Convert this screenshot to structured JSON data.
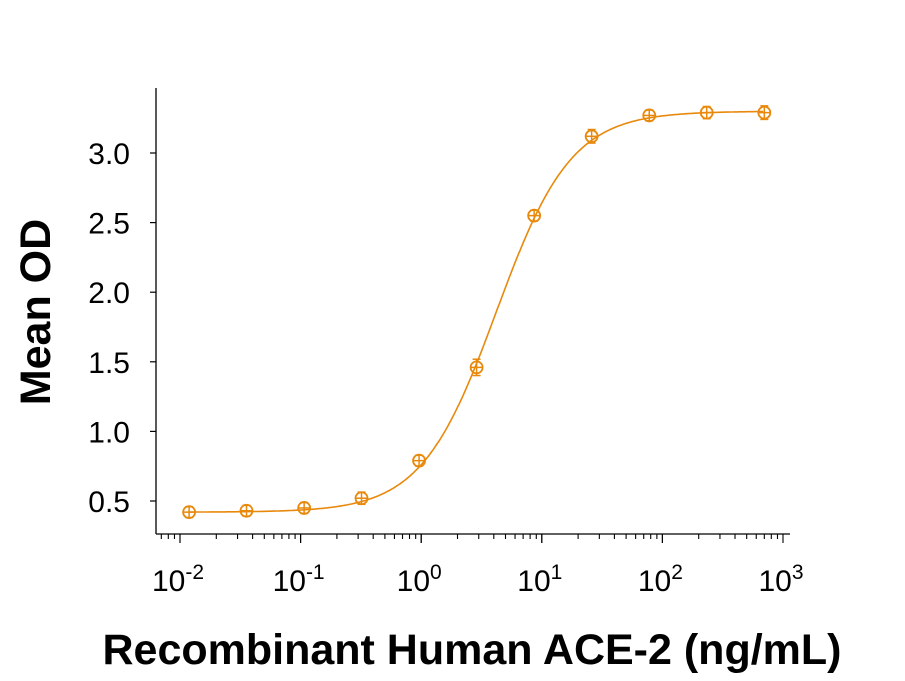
{
  "chart_data": {
    "type": "line",
    "title": "",
    "xlabel": "Recombinant Human ACE-2 (ng/mL)",
    "ylabel": "Mean OD",
    "x_scale": "log",
    "xlim": [
      0.0063,
      1000
    ],
    "ylim": [
      0.3,
      3.45
    ],
    "x_ticks": [
      {
        "base": "10",
        "exp": "-2",
        "value": 0.01
      },
      {
        "base": "10",
        "exp": "-1",
        "value": 0.1
      },
      {
        "base": "10",
        "exp": "0",
        "value": 1
      },
      {
        "base": "10",
        "exp": "1",
        "value": 10
      },
      {
        "base": "10",
        "exp": "2",
        "value": 100
      },
      {
        "base": "10",
        "exp": "3",
        "value": 1000
      }
    ],
    "y_ticks": [
      "0.5",
      "1.0",
      "1.5",
      "2.0",
      "2.5",
      "3.0"
    ],
    "grid": false,
    "legend": "none",
    "color": "#E8890C",
    "series": [
      {
        "x": [
          0.0119,
          0.0356,
          0.107,
          0.32,
          0.96,
          2.88,
          8.64,
          25.9,
          77.8,
          233,
          700
        ],
        "y": [
          0.42,
          0.43,
          0.45,
          0.52,
          0.79,
          1.46,
          2.55,
          3.12,
          3.27,
          3.29,
          3.29
        ],
        "error": [
          0.01,
          0.01,
          0.01,
          0.015,
          0.01,
          0.03,
          0.01,
          0.02,
          0.01,
          0.015,
          0.02
        ],
        "fit": "4-parameter logistic curve"
      }
    ]
  }
}
